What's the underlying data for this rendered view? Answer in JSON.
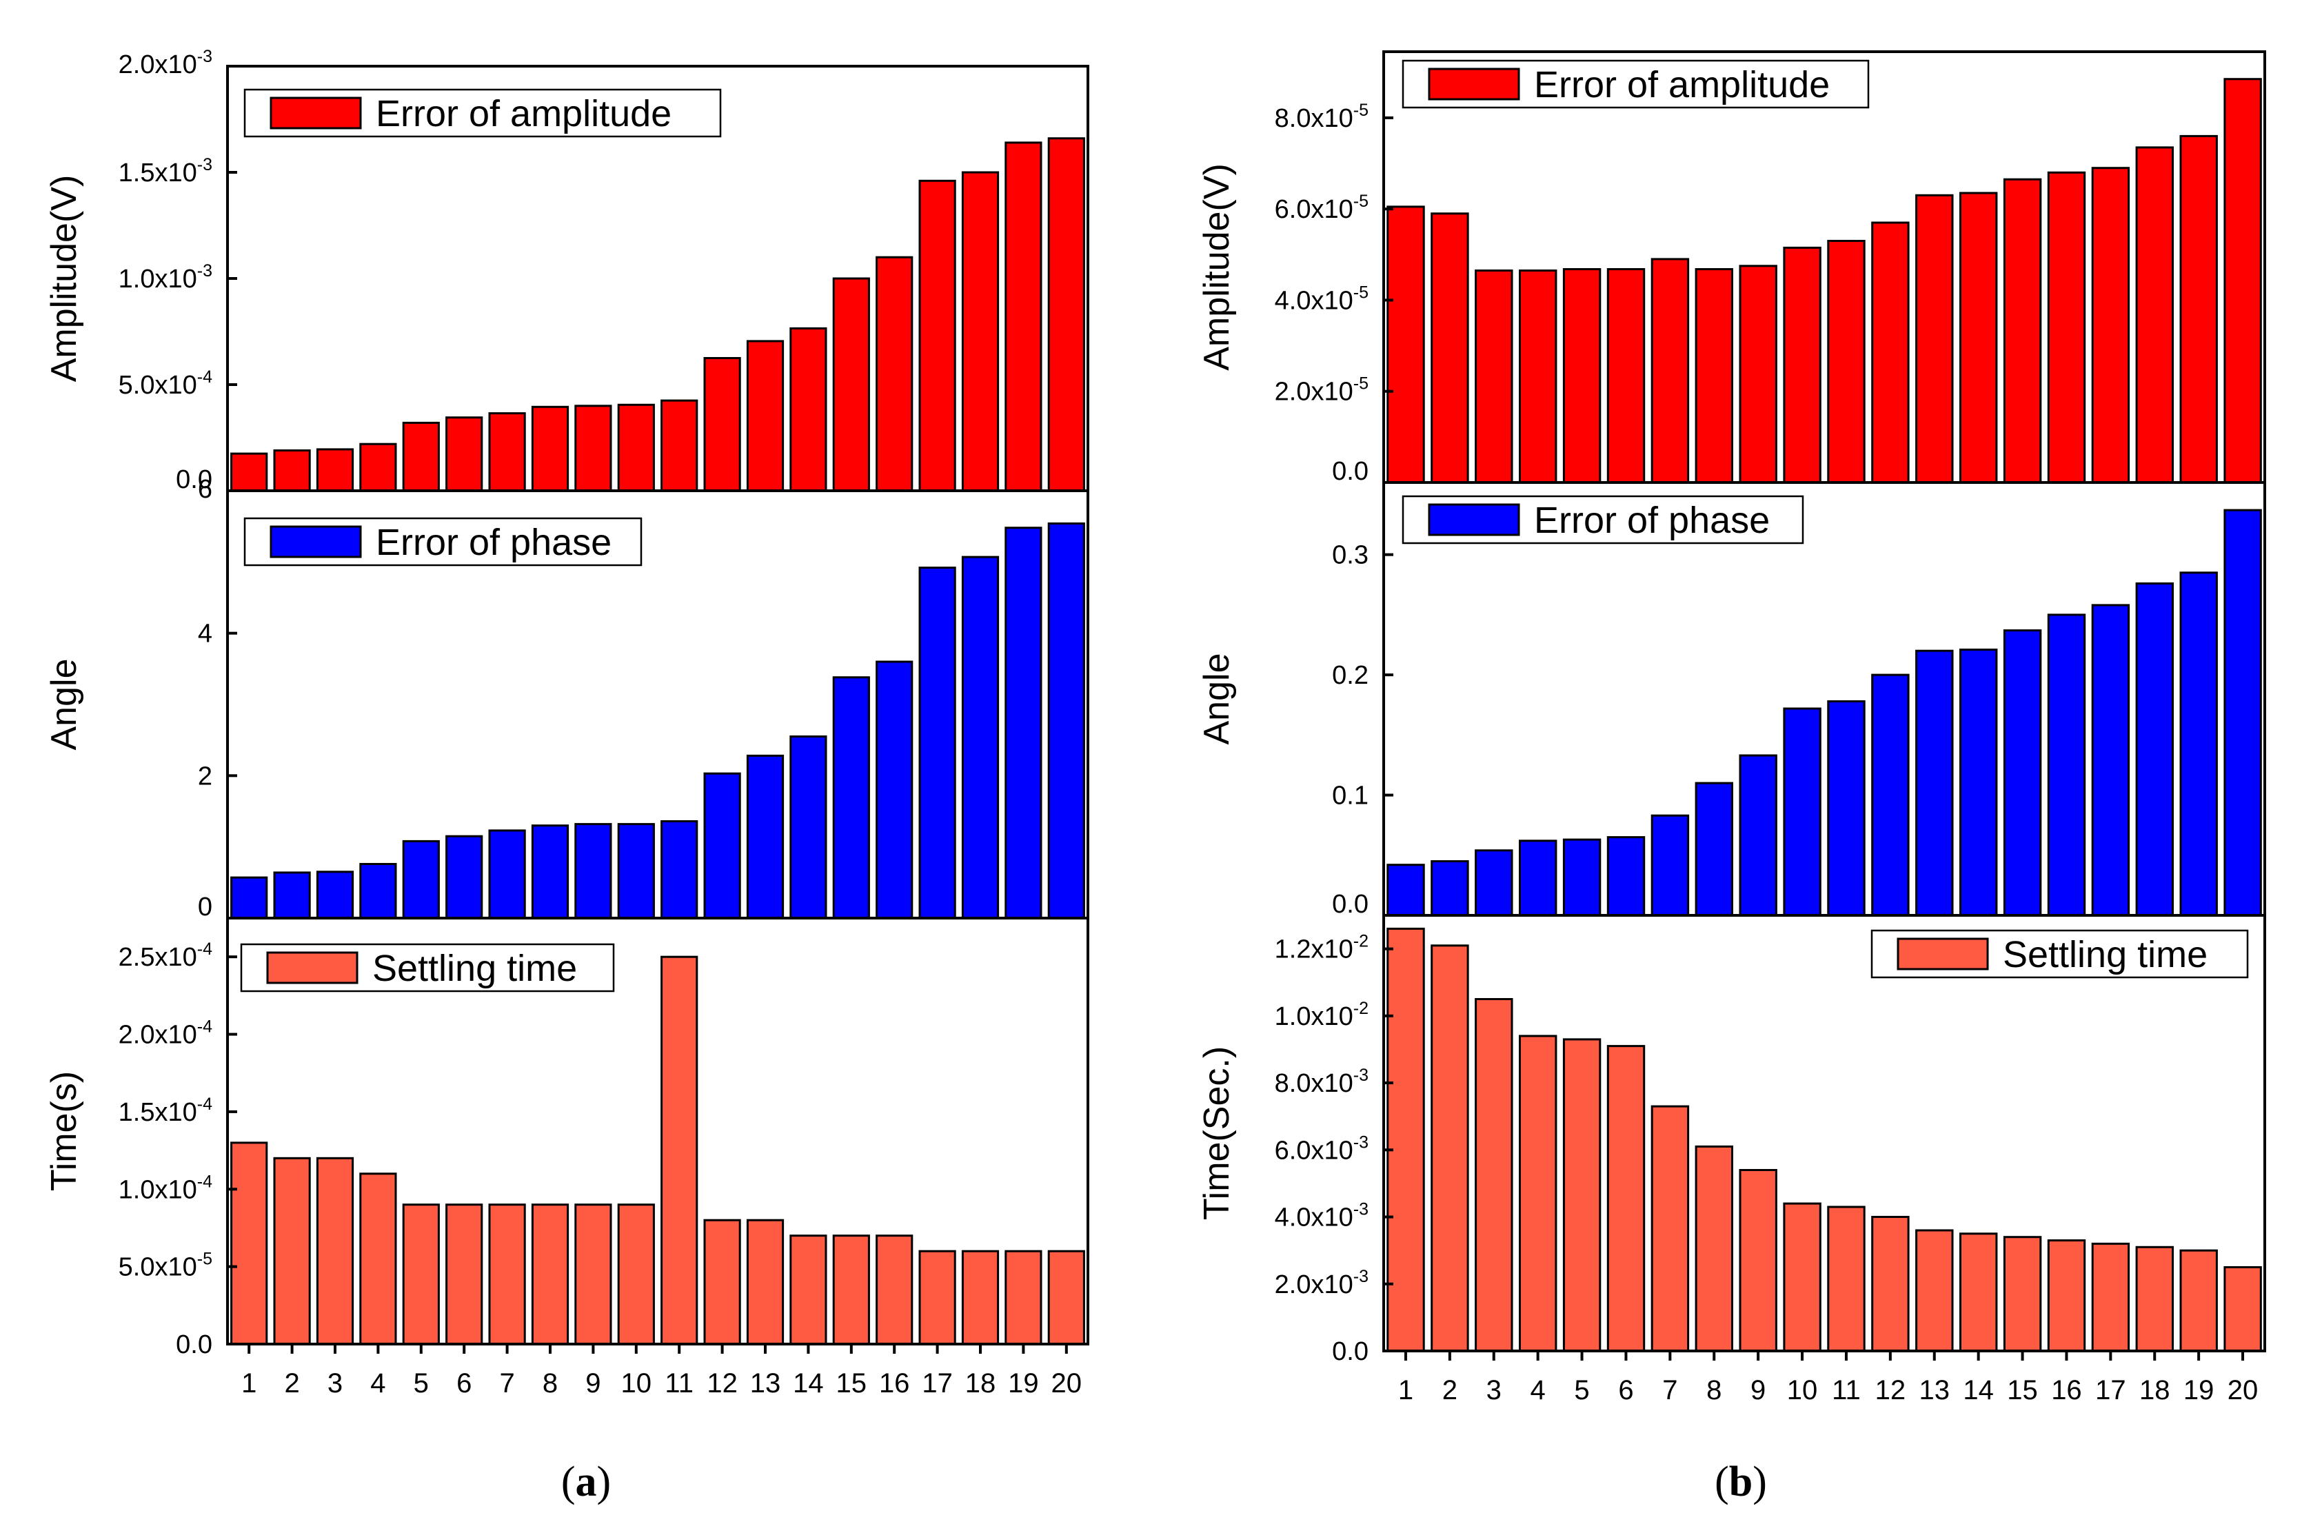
{
  "panel_labels": {
    "a": "a",
    "b": "b",
    "open": "(",
    "close": ")"
  },
  "colors": {
    "amplitude": "#ff0000",
    "phase": "#0000ff",
    "settling": "#ff5a42"
  },
  "chart_data": [
    {
      "id": "a-amplitude",
      "type": "bar",
      "title": "",
      "legend": "Error of amplitude",
      "ylabel": "Amplitude(V)",
      "ylim": [
        0,
        0.002
      ],
      "yticks": [
        {
          "value": 0,
          "label": "0.0",
          "exp": ""
        },
        {
          "value": 0.0005,
          "label": "5.0x10",
          "exp": "-4"
        },
        {
          "value": 0.001,
          "label": "1.0x10",
          "exp": "-3"
        },
        {
          "value": 0.0015,
          "label": "1.5x10",
          "exp": "-3"
        },
        {
          "value": 0.002,
          "label": "2.0x10",
          "exp": "-3"
        }
      ],
      "categories": [
        "1",
        "2",
        "3",
        "4",
        "5",
        "6",
        "7",
        "8",
        "9",
        "10",
        "11",
        "12",
        "13",
        "14",
        "15",
        "16",
        "17",
        "18",
        "19",
        "20"
      ],
      "values": [
        0.000175,
        0.00019,
        0.000195,
        0.00022,
        0.00032,
        0.000345,
        0.000365,
        0.000395,
        0.0004,
        0.000405,
        0.000425,
        0.000625,
        0.000705,
        0.000765,
        0.001,
        0.0011,
        0.00146,
        0.0015,
        0.00164,
        0.00166
      ]
    },
    {
      "id": "a-phase",
      "type": "bar",
      "title": "",
      "legend": "Error of phase",
      "ylabel": "Angle",
      "ylim": [
        0,
        6
      ],
      "yticks": [
        {
          "value": 0,
          "label": "0",
          "exp": ""
        },
        {
          "value": 2,
          "label": "2",
          "exp": ""
        },
        {
          "value": 4,
          "label": "4",
          "exp": ""
        },
        {
          "value": 6,
          "label": "6",
          "exp": ""
        }
      ],
      "categories": [
        "1",
        "2",
        "3",
        "4",
        "5",
        "6",
        "7",
        "8",
        "9",
        "10",
        "11",
        "12",
        "13",
        "14",
        "15",
        "16",
        "17",
        "18",
        "19",
        "20"
      ],
      "values": [
        0.57,
        0.64,
        0.65,
        0.76,
        1.08,
        1.15,
        1.23,
        1.3,
        1.32,
        1.32,
        1.36,
        2.03,
        2.28,
        2.55,
        3.38,
        3.6,
        4.92,
        5.07,
        5.48,
        5.54
      ]
    },
    {
      "id": "a-settling",
      "type": "bar",
      "title": "",
      "legend": "Settling time",
      "ylabel": "Time(s)",
      "ylim": [
        0,
        0.000275
      ],
      "yticks": [
        {
          "value": 0,
          "label": "0.0",
          "exp": ""
        },
        {
          "value": 5e-05,
          "label": "5.0x10",
          "exp": "-5"
        },
        {
          "value": 0.0001,
          "label": "1.0x10",
          "exp": "-4"
        },
        {
          "value": 0.00015,
          "label": "1.5x10",
          "exp": "-4"
        },
        {
          "value": 0.0002,
          "label": "2.0x10",
          "exp": "-4"
        },
        {
          "value": 0.00025,
          "label": "2.5x10",
          "exp": "-4"
        }
      ],
      "xlabel": "",
      "categories": [
        "1",
        "2",
        "3",
        "4",
        "5",
        "6",
        "7",
        "8",
        "9",
        "10",
        "11",
        "12",
        "13",
        "14",
        "15",
        "16",
        "17",
        "18",
        "19",
        "20"
      ],
      "values": [
        0.00013,
        0.00012,
        0.00012,
        0.00011,
        9e-05,
        9e-05,
        9e-05,
        9e-05,
        9e-05,
        9e-05,
        0.00025,
        8e-05,
        8e-05,
        7e-05,
        7e-05,
        7e-05,
        6e-05,
        6e-05,
        6e-05,
        6e-05
      ]
    },
    {
      "id": "b-amplitude",
      "type": "bar",
      "title": "",
      "legend": "Error of amplitude",
      "ylabel": "Amplitude(V)",
      "ylim": [
        0,
        9.45e-05
      ],
      "yticks": [
        {
          "value": 0,
          "label": "0.0",
          "exp": ""
        },
        {
          "value": 2e-05,
          "label": "2.0x10",
          "exp": "-5"
        },
        {
          "value": 4e-05,
          "label": "4.0x10",
          "exp": "-5"
        },
        {
          "value": 6e-05,
          "label": "6.0x10",
          "exp": "-5"
        },
        {
          "value": 8e-05,
          "label": "8.0x10",
          "exp": "-5"
        }
      ],
      "categories": [
        "1",
        "2",
        "3",
        "4",
        "5",
        "6",
        "7",
        "8",
        "9",
        "10",
        "11",
        "12",
        "13",
        "14",
        "15",
        "16",
        "17",
        "18",
        "19",
        "20"
      ],
      "values": [
        6.05e-05,
        5.9e-05,
        4.65e-05,
        4.65e-05,
        4.68e-05,
        4.68e-05,
        4.9e-05,
        4.68e-05,
        4.75e-05,
        5.15e-05,
        5.3e-05,
        5.7e-05,
        6.3e-05,
        6.35e-05,
        6.65e-05,
        6.8e-05,
        6.9e-05,
        7.35e-05,
        7.6e-05,
        8.85e-05
      ]
    },
    {
      "id": "b-phase",
      "type": "bar",
      "title": "",
      "legend": "Error of phase",
      "ylabel": "Angle",
      "ylim": [
        0,
        0.36
      ],
      "yticks": [
        {
          "value": 0,
          "label": "0.0",
          "exp": ""
        },
        {
          "value": 0.1,
          "label": "0.1",
          "exp": ""
        },
        {
          "value": 0.2,
          "label": "0.2",
          "exp": ""
        },
        {
          "value": 0.3,
          "label": "0.3",
          "exp": ""
        }
      ],
      "categories": [
        "1",
        "2",
        "3",
        "4",
        "5",
        "6",
        "7",
        "8",
        "9",
        "10",
        "11",
        "12",
        "13",
        "14",
        "15",
        "16",
        "17",
        "18",
        "19",
        "20"
      ],
      "values": [
        0.042,
        0.045,
        0.054,
        0.062,
        0.063,
        0.065,
        0.083,
        0.11,
        0.133,
        0.172,
        0.178,
        0.2,
        0.22,
        0.221,
        0.237,
        0.25,
        0.258,
        0.276,
        0.285,
        0.337
      ]
    },
    {
      "id": "b-settling",
      "type": "bar",
      "title": "",
      "legend": "Settling time",
      "ylabel": "Time(Sec.)",
      "ylim": [
        0,
        0.013
      ],
      "yticks": [
        {
          "value": 0,
          "label": "0.0",
          "exp": ""
        },
        {
          "value": 0.002,
          "label": "2.0x10",
          "exp": "-3"
        },
        {
          "value": 0.004,
          "label": "4.0x10",
          "exp": "-3"
        },
        {
          "value": 0.006,
          "label": "6.0x10",
          "exp": "-3"
        },
        {
          "value": 0.008,
          "label": "8.0x10",
          "exp": "-3"
        },
        {
          "value": 0.01,
          "label": "1.0x10",
          "exp": "-2"
        },
        {
          "value": 0.012,
          "label": "1.2x10",
          "exp": "-2"
        }
      ],
      "xlabel": "",
      "categories": [
        "1",
        "2",
        "3",
        "4",
        "5",
        "6",
        "7",
        "8",
        "9",
        "10",
        "11",
        "12",
        "13",
        "14",
        "15",
        "16",
        "17",
        "18",
        "19",
        "20"
      ],
      "values": [
        0.0126,
        0.0121,
        0.0105,
        0.0094,
        0.0093,
        0.0091,
        0.0073,
        0.0061,
        0.0054,
        0.0044,
        0.0043,
        0.004,
        0.0036,
        0.0035,
        0.0034,
        0.0033,
        0.0032,
        0.0031,
        0.003,
        0.0025
      ]
    }
  ]
}
